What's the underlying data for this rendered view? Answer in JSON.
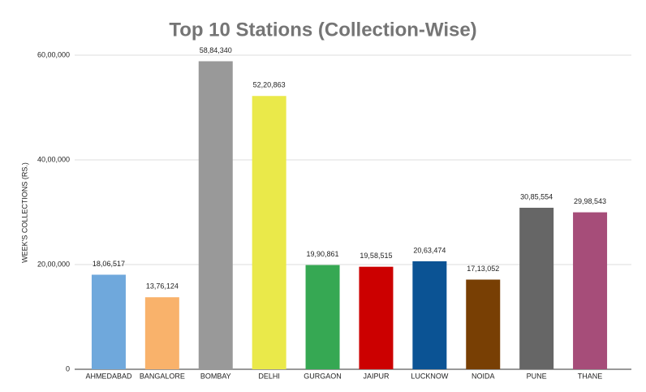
{
  "chart_data": {
    "type": "bar",
    "title": "Top 10 Stations (Collection-Wise)",
    "y_label": "WEEK'S COLLECTIONS (RS.)",
    "categories": [
      "AHMEDABAD",
      "BANGALORE",
      "BOMBAY",
      "DELHI",
      "GURGAON",
      "JAIPUR",
      "LUCKNOW",
      "NOIDA",
      "PUNE",
      "THANE"
    ],
    "values": [
      1806517,
      1376124,
      5884340,
      5220863,
      1990861,
      1958515,
      2063474,
      1713052,
      3085554,
      2998543
    ],
    "value_labels": [
      "18,06,517",
      "13,76,124",
      "58,84,340",
      "52,20,863",
      "19,90,861",
      "19,58,515",
      "20,63,474",
      "17,13,052",
      "30,85,554",
      "29,98,543"
    ],
    "colors": [
      "#6fa8dc",
      "#f9b26b",
      "#999999",
      "#eae94a",
      "#36a853",
      "#cc0000",
      "#0b5394",
      "#783f04",
      "#666666",
      "#a64d79"
    ],
    "ylim": [
      0,
      6000000
    ],
    "yticks": [
      0,
      {
        "value": 2000000,
        "label": "20,00,000"
      },
      {
        "value": 4000000,
        "label": "40,00,000"
      },
      {
        "value": 6000000,
        "label": "60,00,000"
      }
    ],
    "grid": true
  }
}
